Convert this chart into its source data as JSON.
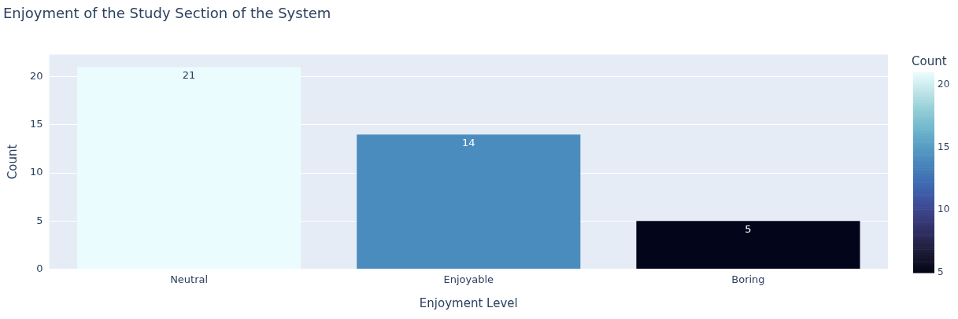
{
  "chart_data": {
    "type": "bar",
    "title": "Enjoyment of the Study Section of the System",
    "xlabel": "Enjoyment Level",
    "ylabel": "Count",
    "clabel": "Count",
    "categories": [
      "Neutral",
      "Enjoyable",
      "Boring"
    ],
    "values": [
      21,
      14,
      5
    ],
    "colors": [
      "#eafcfd",
      "#4b8cbe",
      "#03051a"
    ],
    "ylim": [
      0,
      22.3
    ],
    "yticks": [
      0,
      5,
      10,
      15,
      20
    ],
    "clim": [
      5,
      21
    ],
    "cticks": [
      5,
      10,
      15,
      20
    ],
    "grid": "y",
    "data_labels": true
  }
}
